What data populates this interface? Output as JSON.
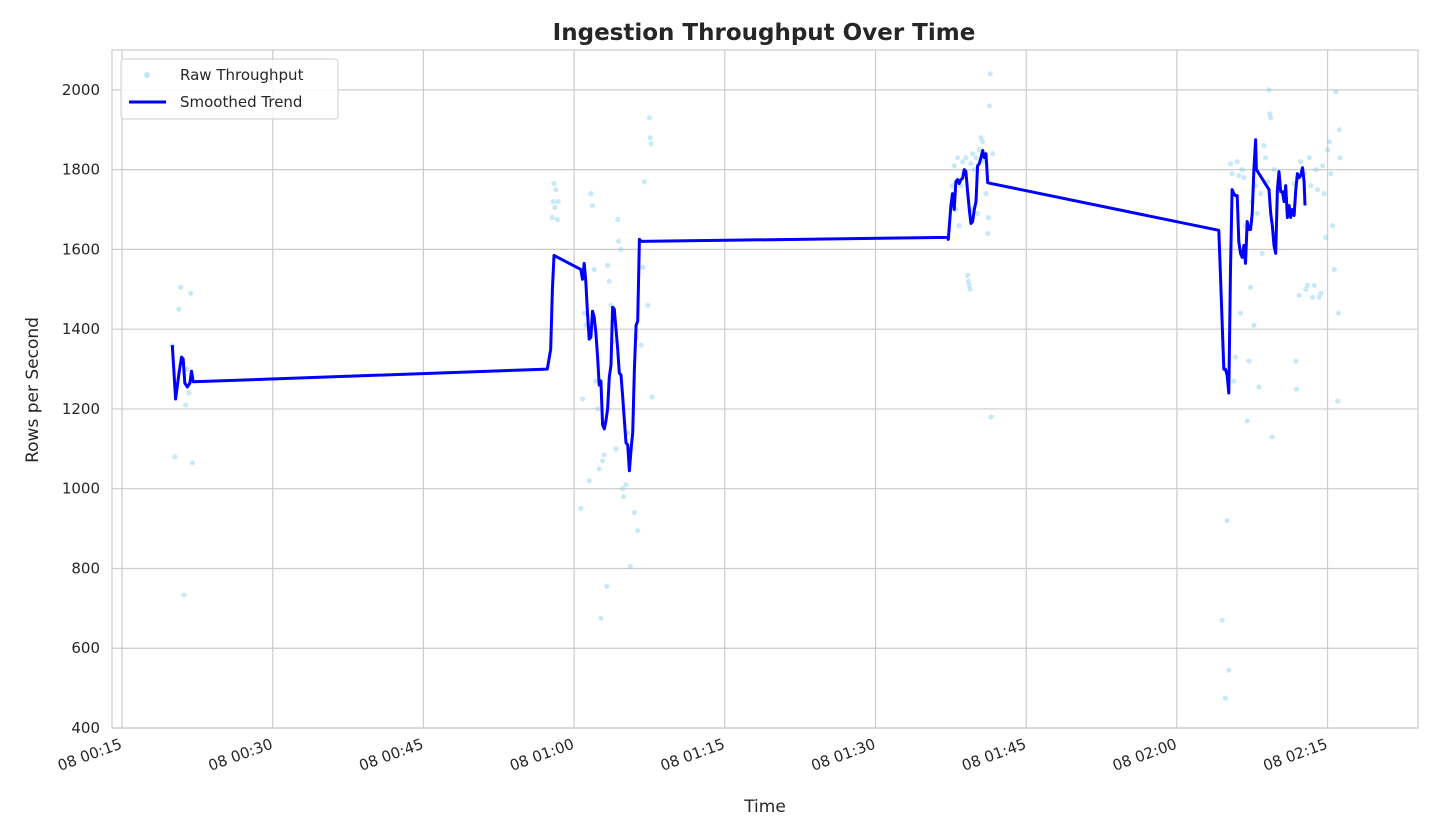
{
  "chart_data": {
    "type": "line",
    "title": "Ingestion Throughput Over Time",
    "xlabel": "Time",
    "ylabel": "Rows per Second",
    "x_axis": {
      "kind": "time",
      "range": [
        "00:14",
        "02:24"
      ],
      "ticks": [
        {
          "time": "00:15",
          "label": "08 00:15"
        },
        {
          "time": "00:30",
          "label": "08 00:30"
        },
        {
          "time": "00:45",
          "label": "08 00:45"
        },
        {
          "time": "01:00",
          "label": "08 01:00"
        },
        {
          "time": "01:15",
          "label": "08 01:15"
        },
        {
          "time": "01:30",
          "label": "08 01:30"
        },
        {
          "time": "01:45",
          "label": "08 01:45"
        },
        {
          "time": "02:00",
          "label": "08 02:00"
        },
        {
          "time": "02:15",
          "label": "08 02:15"
        }
      ]
    },
    "ylim": [
      400,
      2100
    ],
    "y_ticks": [
      "400",
      "600",
      "800",
      "1000",
      "1200",
      "1400",
      "1600",
      "1800",
      "2000"
    ],
    "grid": true,
    "legend": {
      "position": "top-left",
      "entries": [
        {
          "label": "Raw Throughput",
          "marker": "point",
          "color": "#87ceeb"
        },
        {
          "label": "Smoothed Trend",
          "marker": "line",
          "color": "#0000ff"
        }
      ]
    },
    "series": [
      {
        "name": "Raw Throughput",
        "kind": "scatter",
        "color": "#87ceeb",
        "points": [
          [
            "00:20:00",
            1358
          ],
          [
            "00:20:15",
            1080
          ],
          [
            "00:20:40",
            1450
          ],
          [
            "00:20:50",
            1505
          ],
          [
            "00:21:10",
            733
          ],
          [
            "00:21:20",
            1210
          ],
          [
            "00:21:50",
            1490
          ],
          [
            "00:22:00",
            1065
          ],
          [
            "00:21:30",
            1300
          ],
          [
            "00:21:40",
            1240
          ],
          [
            "00:57:50",
            1680
          ],
          [
            "00:57:55",
            1720
          ],
          [
            "00:58:00",
            1765
          ],
          [
            "00:58:05",
            1705
          ],
          [
            "00:58:10",
            1750
          ],
          [
            "00:58:20",
            1675
          ],
          [
            "00:58:25",
            1720
          ],
          [
            "01:00:40",
            950
          ],
          [
            "01:00:50",
            1225
          ],
          [
            "01:01:00",
            1440
          ],
          [
            "01:01:10",
            1410
          ],
          [
            "01:01:30",
            1020
          ],
          [
            "01:01:40",
            1740
          ],
          [
            "01:01:50",
            1710
          ],
          [
            "01:02:00",
            1550
          ],
          [
            "01:02:10",
            1270
          ],
          [
            "01:02:20",
            1200
          ],
          [
            "01:02:30",
            1050
          ],
          [
            "01:02:40",
            675
          ],
          [
            "01:02:50",
            1070
          ],
          [
            "01:03:00",
            1085
          ],
          [
            "01:03:15",
            755
          ],
          [
            "01:03:20",
            1560
          ],
          [
            "01:03:30",
            1520
          ],
          [
            "01:03:40",
            1460
          ],
          [
            "01:03:50",
            1370
          ],
          [
            "01:04:10",
            1100
          ],
          [
            "01:04:20",
            1675
          ],
          [
            "01:04:25",
            1620
          ],
          [
            "01:04:40",
            1600
          ],
          [
            "01:04:50",
            1000
          ],
          [
            "01:04:55",
            980
          ],
          [
            "01:05:10",
            1010
          ],
          [
            "01:05:20",
            1140
          ],
          [
            "01:05:35",
            805
          ],
          [
            "01:05:40",
            1100
          ],
          [
            "01:06:00",
            940
          ],
          [
            "01:06:10",
            1380
          ],
          [
            "01:06:20",
            895
          ],
          [
            "01:06:40",
            1360
          ],
          [
            "01:06:50",
            1555
          ],
          [
            "01:07:00",
            1770
          ],
          [
            "01:07:20",
            1460
          ],
          [
            "01:07:30",
            1930
          ],
          [
            "01:07:35",
            1880
          ],
          [
            "01:07:40",
            1865
          ],
          [
            "01:07:45",
            1230
          ],
          [
            "01:37:40",
            1760
          ],
          [
            "01:37:50",
            1810
          ],
          [
            "01:38:00",
            1700
          ],
          [
            "01:38:10",
            1830
          ],
          [
            "01:38:20",
            1660
          ],
          [
            "01:38:40",
            1820
          ],
          [
            "01:38:50",
            1790
          ],
          [
            "01:39:00",
            1830
          ],
          [
            "01:39:10",
            1535
          ],
          [
            "01:39:15",
            1520
          ],
          [
            "01:39:20",
            1510
          ],
          [
            "01:39:25",
            1500
          ],
          [
            "01:39:30",
            1815
          ],
          [
            "01:39:40",
            1840
          ],
          [
            "01:39:50",
            1800
          ],
          [
            "01:40:00",
            1830
          ],
          [
            "01:40:20",
            1850
          ],
          [
            "01:40:30",
            1880
          ],
          [
            "01:40:40",
            1870
          ],
          [
            "01:40:50",
            1820
          ],
          [
            "01:41:00",
            1740
          ],
          [
            "01:41:10",
            1640
          ],
          [
            "01:41:15",
            1680
          ],
          [
            "01:41:20",
            1960
          ],
          [
            "01:41:25",
            2040
          ],
          [
            "01:41:30",
            1180
          ],
          [
            "01:41:40",
            1840
          ],
          [
            "01:39:35",
            1700
          ],
          [
            "01:40:10",
            1690
          ],
          [
            "01:38:30",
            1760
          ],
          [
            "02:04:30",
            670
          ],
          [
            "02:04:50",
            475
          ],
          [
            "02:05:00",
            920
          ],
          [
            "02:05:10",
            545
          ],
          [
            "02:05:20",
            1815
          ],
          [
            "02:05:30",
            1790
          ],
          [
            "02:05:40",
            1270
          ],
          [
            "02:05:50",
            1330
          ],
          [
            "02:06:00",
            1820
          ],
          [
            "02:06:10",
            1785
          ],
          [
            "02:06:20",
            1440
          ],
          [
            "02:06:30",
            1800
          ],
          [
            "02:06:40",
            1780
          ],
          [
            "02:06:50",
            1660
          ],
          [
            "02:07:00",
            1170
          ],
          [
            "02:07:10",
            1320
          ],
          [
            "02:07:20",
            1505
          ],
          [
            "02:07:30",
            1720
          ],
          [
            "02:07:40",
            1410
          ],
          [
            "02:07:50",
            1760
          ],
          [
            "02:08:00",
            1690
          ],
          [
            "02:08:10",
            1255
          ],
          [
            "02:08:20",
            1740
          ],
          [
            "02:08:30",
            1590
          ],
          [
            "02:08:40",
            1860
          ],
          [
            "02:08:50",
            1830
          ],
          [
            "02:09:00",
            1770
          ],
          [
            "02:09:10",
            2000
          ],
          [
            "02:09:15",
            1940
          ],
          [
            "02:09:20",
            1930
          ],
          [
            "02:09:30",
            1130
          ],
          [
            "02:09:40",
            1800
          ],
          [
            "02:11:40",
            1765
          ],
          [
            "02:11:50",
            1320
          ],
          [
            "02:11:55",
            1250
          ],
          [
            "02:12:00",
            1780
          ],
          [
            "02:12:10",
            1485
          ],
          [
            "02:12:20",
            1820
          ],
          [
            "02:12:30",
            1800
          ],
          [
            "02:12:40",
            1790
          ],
          [
            "02:12:50",
            1500
          ],
          [
            "02:13:00",
            1510
          ],
          [
            "02:13:10",
            1830
          ],
          [
            "02:13:20",
            1760
          ],
          [
            "02:13:30",
            1480
          ],
          [
            "02:13:40",
            1510
          ],
          [
            "02:13:50",
            1800
          ],
          [
            "02:14:00",
            1750
          ],
          [
            "02:14:10",
            1480
          ],
          [
            "02:14:20",
            1490
          ],
          [
            "02:14:30",
            1810
          ],
          [
            "02:14:40",
            1740
          ],
          [
            "02:14:50",
            1630
          ],
          [
            "02:15:00",
            1850
          ],
          [
            "02:15:10",
            1870
          ],
          [
            "02:15:20",
            1790
          ],
          [
            "02:15:30",
            1660
          ],
          [
            "02:15:40",
            1550
          ],
          [
            "02:15:50",
            1995
          ],
          [
            "02:16:00",
            1220
          ],
          [
            "02:16:05",
            1440
          ],
          [
            "02:16:10",
            1900
          ],
          [
            "02:16:15",
            1830
          ]
        ]
      },
      {
        "name": "Smoothed Trend",
        "kind": "line",
        "color": "#0000ff",
        "points": [
          [
            "00:20:00",
            1360
          ],
          [
            "00:20:20",
            1225
          ],
          [
            "00:20:40",
            1290
          ],
          [
            "00:20:55",
            1330
          ],
          [
            "00:21:05",
            1325
          ],
          [
            "00:21:15",
            1265
          ],
          [
            "00:21:30",
            1255
          ],
          [
            "00:21:45",
            1265
          ],
          [
            "00:21:55",
            1295
          ],
          [
            "00:22:05",
            1268
          ],
          [
            "00:57:20",
            1300
          ],
          [
            "00:57:40",
            1350
          ],
          [
            "00:57:50",
            1500
          ],
          [
            "00:58:00",
            1585
          ],
          [
            "01:00:40",
            1550
          ],
          [
            "01:00:50",
            1525
          ],
          [
            "01:01:00",
            1565
          ],
          [
            "01:01:10",
            1520
          ],
          [
            "01:01:20",
            1440
          ],
          [
            "01:01:30",
            1375
          ],
          [
            "01:01:40",
            1380
          ],
          [
            "01:01:50",
            1445
          ],
          [
            "01:02:00",
            1430
          ],
          [
            "01:02:10",
            1390
          ],
          [
            "01:02:20",
            1330
          ],
          [
            "01:02:30",
            1260
          ],
          [
            "01:02:40",
            1270
          ],
          [
            "01:02:50",
            1160
          ],
          [
            "01:03:00",
            1150
          ],
          [
            "01:03:10",
            1170
          ],
          [
            "01:03:20",
            1200
          ],
          [
            "01:03:30",
            1280
          ],
          [
            "01:03:40",
            1310
          ],
          [
            "01:03:50",
            1455
          ],
          [
            "01:04:00",
            1450
          ],
          [
            "01:04:10",
            1400
          ],
          [
            "01:04:20",
            1350
          ],
          [
            "01:04:30",
            1290
          ],
          [
            "01:04:40",
            1285
          ],
          [
            "01:04:50",
            1230
          ],
          [
            "01:05:00",
            1170
          ],
          [
            "01:05:10",
            1115
          ],
          [
            "01:05:20",
            1110
          ],
          [
            "01:05:30",
            1045
          ],
          [
            "01:05:40",
            1100
          ],
          [
            "01:05:50",
            1140
          ],
          [
            "01:06:00",
            1300
          ],
          [
            "01:06:10",
            1410
          ],
          [
            "01:06:20",
            1420
          ],
          [
            "01:06:30",
            1625
          ],
          [
            "01:06:40",
            1620
          ],
          [
            "01:37:10",
            1630
          ],
          [
            "01:37:15",
            1625
          ],
          [
            "01:37:30",
            1710
          ],
          [
            "01:37:40",
            1740
          ],
          [
            "01:37:50",
            1700
          ],
          [
            "01:38:00",
            1770
          ],
          [
            "01:38:10",
            1775
          ],
          [
            "01:38:20",
            1765
          ],
          [
            "01:38:30",
            1775
          ],
          [
            "01:38:40",
            1778
          ],
          [
            "01:38:50",
            1800
          ],
          [
            "01:39:00",
            1795
          ],
          [
            "01:39:10",
            1745
          ],
          [
            "01:39:20",
            1700
          ],
          [
            "01:39:30",
            1665
          ],
          [
            "01:39:40",
            1670
          ],
          [
            "01:39:50",
            1700
          ],
          [
            "01:40:00",
            1720
          ],
          [
            "01:40:10",
            1810
          ],
          [
            "01:40:20",
            1815
          ],
          [
            "01:40:30",
            1830
          ],
          [
            "01:40:40",
            1848
          ],
          [
            "01:40:50",
            1830
          ],
          [
            "01:41:00",
            1840
          ],
          [
            "01:41:10",
            1767
          ],
          [
            "02:04:10",
            1648
          ],
          [
            "02:04:20",
            1540
          ],
          [
            "02:04:30",
            1420
          ],
          [
            "02:04:40",
            1300
          ],
          [
            "02:04:50",
            1300
          ],
          [
            "02:05:00",
            1285
          ],
          [
            "02:05:10",
            1240
          ],
          [
            "02:05:20",
            1550
          ],
          [
            "02:05:30",
            1750
          ],
          [
            "02:05:40",
            1740
          ],
          [
            "02:05:50",
            1735
          ],
          [
            "02:06:00",
            1735
          ],
          [
            "02:06:10",
            1620
          ],
          [
            "02:06:20",
            1590
          ],
          [
            "02:06:30",
            1580
          ],
          [
            "02:06:40",
            1610
          ],
          [
            "02:06:50",
            1565
          ],
          [
            "02:07:00",
            1670
          ],
          [
            "02:07:10",
            1650
          ],
          [
            "02:07:20",
            1650
          ],
          [
            "02:07:30",
            1690
          ],
          [
            "02:07:40",
            1800
          ],
          [
            "02:07:50",
            1875
          ],
          [
            "02:07:55",
            1800
          ],
          [
            "02:09:10",
            1750
          ],
          [
            "02:09:20",
            1690
          ],
          [
            "02:09:30",
            1660
          ],
          [
            "02:09:40",
            1610
          ],
          [
            "02:09:50",
            1590
          ],
          [
            "02:10:00",
            1750
          ],
          [
            "02:10:10",
            1795
          ],
          [
            "02:10:20",
            1745
          ],
          [
            "02:10:30",
            1745
          ],
          [
            "02:10:40",
            1720
          ],
          [
            "02:10:50",
            1760
          ],
          [
            "02:11:00",
            1680
          ],
          [
            "02:11:10",
            1710
          ],
          [
            "02:11:20",
            1680
          ],
          [
            "02:11:30",
            1700
          ],
          [
            "02:11:40",
            1685
          ],
          [
            "02:11:50",
            1750
          ],
          [
            "02:12:00",
            1790
          ],
          [
            "02:12:10",
            1780
          ],
          [
            "02:12:20",
            1785
          ],
          [
            "02:12:30",
            1805
          ],
          [
            "02:12:40",
            1770
          ],
          [
            "02:12:45",
            1710
          ]
        ]
      }
    ]
  }
}
